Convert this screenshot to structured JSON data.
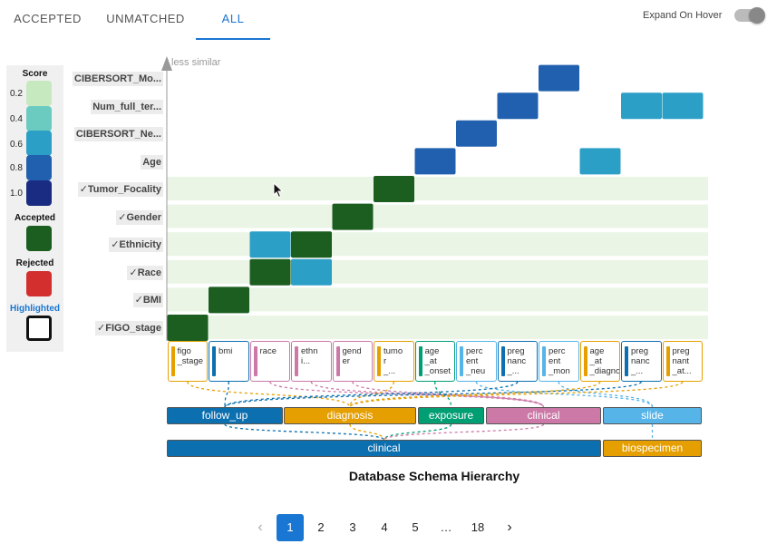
{
  "tabs": [
    {
      "label": "ACCEPTED"
    },
    {
      "label": "UNMATCHED"
    },
    {
      "label": "ALL",
      "active": true
    }
  ],
  "expand_on_hover": {
    "label": "Expand On Hover",
    "on": false
  },
  "legend": {
    "score_title": "Score",
    "scores": [
      {
        "value": "0.2",
        "color": "#c7e9c0"
      },
      {
        "value": "0.4",
        "color": "#6ccbc1"
      },
      {
        "value": "0.6",
        "color": "#2c9fc7"
      },
      {
        "value": "0.8",
        "color": "#2160ae"
      },
      {
        "value": "1.0",
        "color": "#1a2c82"
      }
    ],
    "accepted_title": "Accepted",
    "accepted_color": "#1b5e20",
    "rejected_title": "Rejected",
    "rejected_color": "#d32f2f",
    "highlighted_title": "Highlighted"
  },
  "axis_label": "less similar",
  "rows": [
    {
      "label": "FIGO_stage",
      "accepted": true
    },
    {
      "label": "BMI",
      "accepted": true
    },
    {
      "label": "Race",
      "accepted": true
    },
    {
      "label": "Ethnicity",
      "accepted": true
    },
    {
      "label": "Gender",
      "accepted": true
    },
    {
      "label": "Tumor_Focality",
      "accepted": true
    },
    {
      "label": "Age",
      "accepted": false
    },
    {
      "label": "CIBERSORT_Ne...",
      "accepted": false
    },
    {
      "label": "Num_full_ter...",
      "accepted": false
    },
    {
      "label": "CIBERSORT_Mo...",
      "accepted": false
    }
  ],
  "checkmark": "✓",
  "attributes": [
    {
      "text": "figo\n_stage",
      "table": "diagnosis"
    },
    {
      "text": "bmi",
      "table": "follow_up"
    },
    {
      "text": "race",
      "table": "clinical"
    },
    {
      "text": "ethn\ni...",
      "table": "clinical"
    },
    {
      "text": "gend\ner",
      "table": "clinical"
    },
    {
      "text": "tumo\nr\n_...",
      "table": "diagnosis"
    },
    {
      "text": "age\n_at\n_onset",
      "table": "exposure"
    },
    {
      "text": "perc\nent\n_neu",
      "table": "slide"
    },
    {
      "text": "preg\nnanc\n_...",
      "table": "follow_up"
    },
    {
      "text": "perc\nent\n_mon",
      "table": "slide"
    },
    {
      "text": "age\n_at\n_diagnosis",
      "table": "diagnosis"
    },
    {
      "text": "preg\nnanc\n_...",
      "table": "follow_up"
    },
    {
      "text": "preg\nnant\n_at...",
      "table": "diagnosis"
    }
  ],
  "tables": [
    {
      "label": "follow_up",
      "color": "#0b6fb0"
    },
    {
      "label": "diagnosis",
      "color": "#e69f00"
    },
    {
      "label": "exposure",
      "color": "#009e73"
    },
    {
      "label": "clinical",
      "color": "#cc79a7"
    },
    {
      "label": "slide",
      "color": "#56b4e9"
    }
  ],
  "groups": [
    {
      "label": "clinical",
      "color": "#0b6fb0"
    },
    {
      "label": "biospecimen",
      "color": "#e69f00"
    }
  ],
  "caption": "Database Schema Hierarchy",
  "cells": [
    {
      "row": 0,
      "col": 0,
      "status": "accepted"
    },
    {
      "row": 1,
      "col": 1,
      "status": "accepted"
    },
    {
      "row": 2,
      "col": 2,
      "status": "accepted"
    },
    {
      "row": 2,
      "col": 3,
      "score": 0.6
    },
    {
      "row": 3,
      "col": 2,
      "score": 0.6
    },
    {
      "row": 3,
      "col": 3,
      "status": "accepted"
    },
    {
      "row": 4,
      "col": 4,
      "status": "accepted"
    },
    {
      "row": 5,
      "col": 5,
      "status": "accepted"
    },
    {
      "row": 6,
      "col": 6,
      "score": 0.8
    },
    {
      "row": 6,
      "col": 10,
      "score": 0.6
    },
    {
      "row": 7,
      "col": 7,
      "score": 0.8
    },
    {
      "row": 8,
      "col": 8,
      "score": 0.8
    },
    {
      "row": 8,
      "col": 11,
      "score": 0.6
    },
    {
      "row": 8,
      "col": 12,
      "score": 0.6
    },
    {
      "row": 9,
      "col": 9,
      "score": 0.8
    }
  ],
  "pagination": {
    "prev": "‹",
    "next": "›",
    "pages": [
      "1",
      "2",
      "3",
      "4",
      "5",
      "…",
      "18"
    ],
    "current": "1"
  }
}
